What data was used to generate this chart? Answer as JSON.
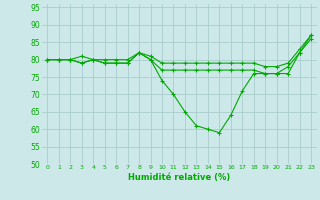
{
  "title": "",
  "xlabel": "Humidité relative (%)",
  "ylabel": "",
  "bg_color": "#cce8e8",
  "grid_color": "#aacccc",
  "line_color": "#00aa00",
  "xlim": [
    -0.5,
    23.5
  ],
  "ylim": [
    50,
    96
  ],
  "yticks": [
    50,
    55,
    60,
    65,
    70,
    75,
    80,
    85,
    90,
    95
  ],
  "xticks": [
    0,
    1,
    2,
    3,
    4,
    5,
    6,
    7,
    8,
    9,
    10,
    11,
    12,
    13,
    14,
    15,
    16,
    17,
    18,
    19,
    20,
    21,
    22,
    23
  ],
  "series": [
    [
      80,
      80,
      80,
      79,
      80,
      79,
      79,
      79,
      82,
      80,
      77,
      77,
      77,
      77,
      77,
      77,
      77,
      77,
      77,
      76,
      76,
      76,
      82,
      86
    ],
    [
      80,
      80,
      80,
      79,
      80,
      79,
      79,
      79,
      82,
      80,
      74,
      70,
      65,
      61,
      60,
      59,
      64,
      71,
      76,
      76,
      76,
      78,
      82,
      87
    ],
    [
      80,
      80,
      80,
      81,
      80,
      80,
      80,
      80,
      82,
      81,
      79,
      79,
      79,
      79,
      79,
      79,
      79,
      79,
      79,
      78,
      78,
      79,
      83,
      87
    ]
  ]
}
